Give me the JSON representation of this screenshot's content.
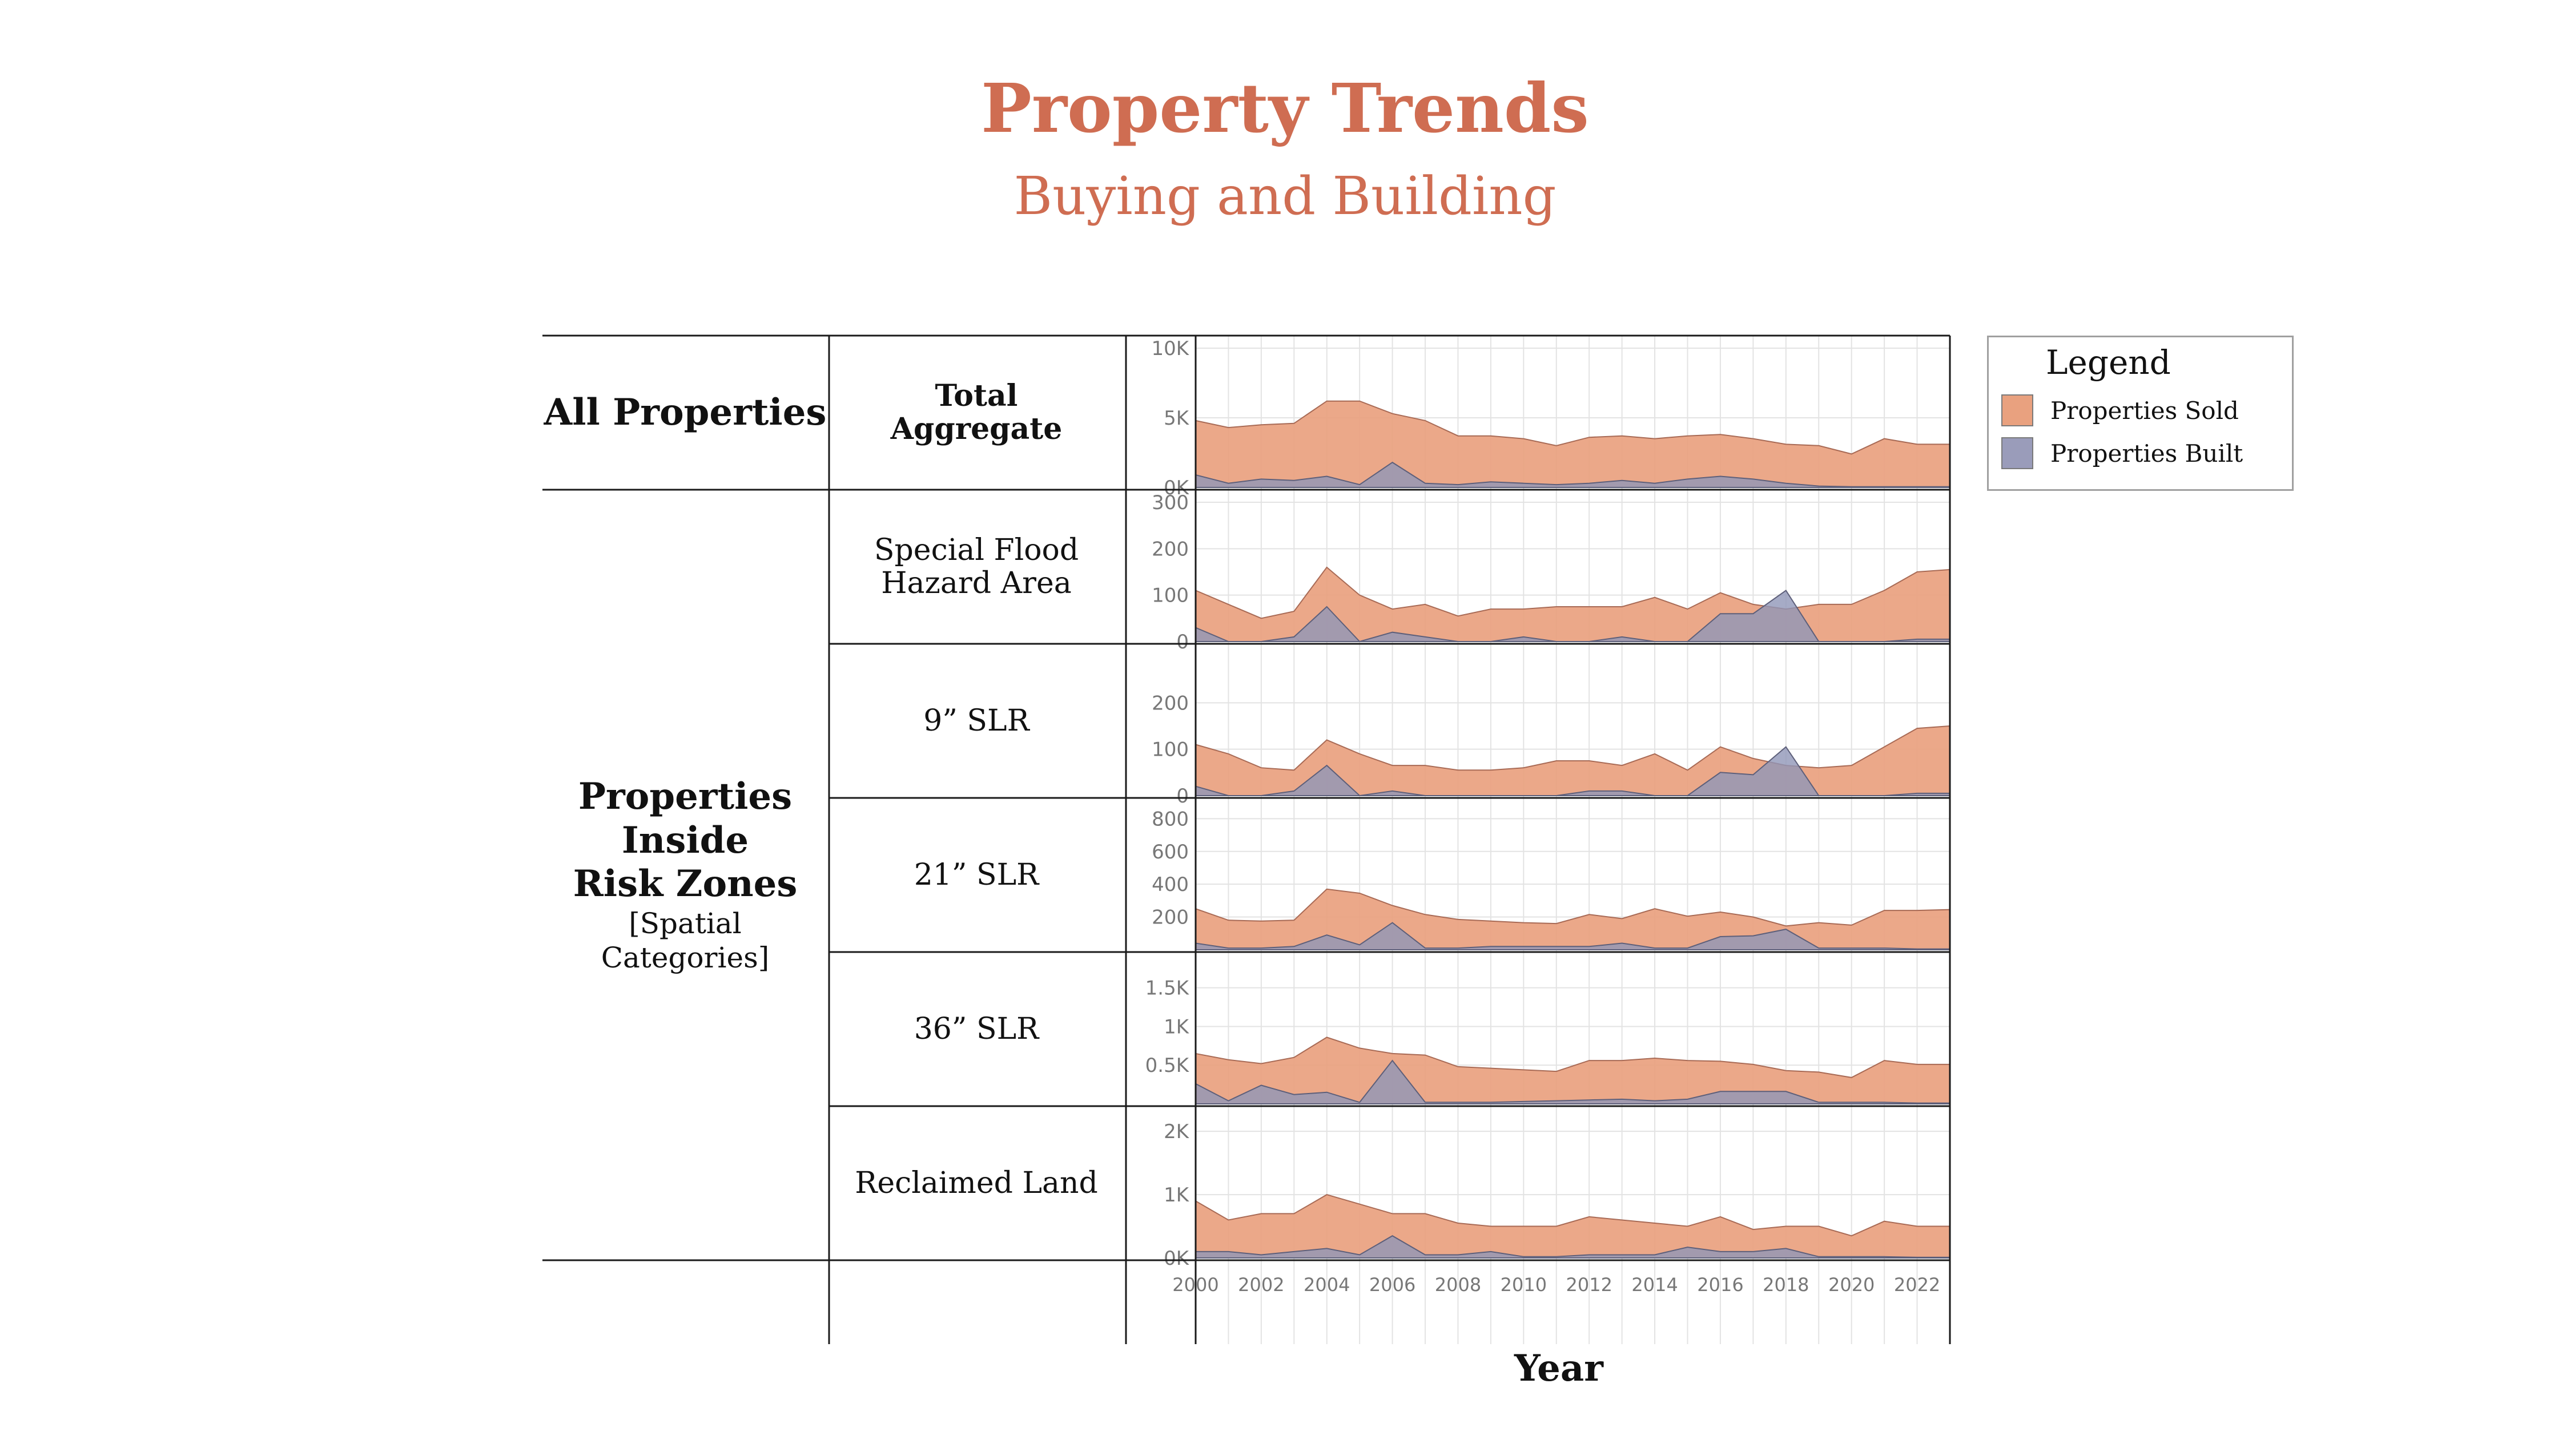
{
  "title": "Property Trends",
  "subtitle": "Buying and Building",
  "categories": {
    "all_main": "All Properties",
    "risk_main_lines": [
      "Properties",
      "Inside",
      "Risk Zones"
    ],
    "risk_sub": "[Spatial Categories]"
  },
  "legend": {
    "title": "Legend",
    "items": [
      {
        "label": "Properties Sold",
        "color": "#e9a17f"
      },
      {
        "label": "Properties Built",
        "color": "#9a9cba"
      }
    ]
  },
  "x_axis_title": "Year",
  "chart_data": {
    "type": "area",
    "x": [
      2000,
      2001,
      2002,
      2003,
      2004,
      2005,
      2006,
      2007,
      2008,
      2009,
      2010,
      2011,
      2012,
      2013,
      2014,
      2015,
      2016,
      2017,
      2018,
      2019,
      2020,
      2021,
      2022,
      2023
    ],
    "x_tick_labels": [
      "2000",
      "2002",
      "2004",
      "2006",
      "2008",
      "2010",
      "2012",
      "2014",
      "2016",
      "2018",
      "2020",
      "2022"
    ],
    "xlabel": "Year",
    "series_names": [
      "Properties Sold",
      "Properties Built"
    ],
    "panels": [
      {
        "label": "Total Aggregate",
        "bold": true,
        "ylim": [
          0,
          10000
        ],
        "y_ticks": [
          {
            "v": 0,
            "label": "0K"
          },
          {
            "v": 5000,
            "label": "5K"
          },
          {
            "v": 10000,
            "label": "10K"
          }
        ],
        "sold": [
          4800,
          4300,
          4500,
          4600,
          6200,
          6200,
          5300,
          4800,
          3700,
          3700,
          3500,
          3000,
          3600,
          3700,
          3500,
          3700,
          3800,
          3500,
          3100,
          3000,
          2400,
          3500,
          3100,
          3100
        ],
        "built": [
          900,
          300,
          600,
          500,
          800,
          200,
          1800,
          300,
          200,
          400,
          300,
          200,
          300,
          500,
          300,
          600,
          800,
          600,
          300,
          100,
          50,
          50,
          50,
          50
        ]
      },
      {
        "label": "Special Flood Hazard Area",
        "ylim": [
          0,
          300
        ],
        "y_ticks": [
          {
            "v": 0,
            "label": "0"
          },
          {
            "v": 100,
            "label": "100"
          },
          {
            "v": 200,
            "label": "200"
          },
          {
            "v": 300,
            "label": "300"
          }
        ],
        "sold": [
          110,
          80,
          50,
          65,
          160,
          100,
          70,
          80,
          55,
          70,
          70,
          75,
          75,
          75,
          95,
          70,
          105,
          80,
          70,
          80,
          80,
          110,
          150,
          155
        ],
        "built": [
          30,
          0,
          0,
          10,
          75,
          0,
          20,
          10,
          0,
          0,
          10,
          0,
          0,
          10,
          0,
          0,
          60,
          60,
          110,
          0,
          0,
          0,
          5,
          5
        ]
      },
      {
        "label": "9” SLR",
        "ylim": [
          0,
          300
        ],
        "y_ticks": [
          {
            "v": 0,
            "label": "0"
          },
          {
            "v": 100,
            "label": "100"
          },
          {
            "v": 200,
            "label": "200"
          }
        ],
        "sold": [
          110,
          90,
          60,
          55,
          120,
          90,
          65,
          65,
          55,
          55,
          60,
          75,
          75,
          65,
          90,
          55,
          105,
          80,
          65,
          60,
          65,
          105,
          145,
          150
        ],
        "built": [
          20,
          0,
          0,
          10,
          65,
          0,
          10,
          0,
          0,
          0,
          0,
          0,
          10,
          10,
          0,
          0,
          50,
          45,
          105,
          0,
          0,
          0,
          5,
          5
        ]
      },
      {
        "label": "21” SLR",
        "ylim": [
          0,
          850
        ],
        "y_ticks": [
          {
            "v": 200,
            "label": "200"
          },
          {
            "v": 400,
            "label": "400"
          },
          {
            "v": 600,
            "label": "600"
          },
          {
            "v": 800,
            "label": "800"
          }
        ],
        "sold": [
          250,
          180,
          175,
          180,
          370,
          345,
          270,
          215,
          185,
          175,
          165,
          160,
          215,
          190,
          250,
          205,
          230,
          200,
          145,
          165,
          150,
          240,
          240,
          245
        ],
        "built": [
          40,
          10,
          10,
          20,
          90,
          30,
          165,
          10,
          10,
          20,
          20,
          20,
          20,
          40,
          10,
          10,
          80,
          85,
          125,
          10,
          10,
          10,
          5,
          5
        ]
      },
      {
        "label": "36” SLR",
        "ylim": [
          0,
          1800
        ],
        "y_ticks": [
          {
            "v": 500,
            "label": "0.5K"
          },
          {
            "v": 1000,
            "label": "1K"
          },
          {
            "v": 1500,
            "label": "1.5K"
          }
        ],
        "sold": [
          650,
          570,
          520,
          600,
          860,
          720,
          650,
          630,
          480,
          460,
          440,
          420,
          560,
          560,
          590,
          560,
          550,
          510,
          430,
          410,
          340,
          560,
          510,
          510
        ],
        "built": [
          260,
          40,
          240,
          120,
          150,
          20,
          560,
          20,
          20,
          20,
          30,
          40,
          50,
          60,
          40,
          60,
          160,
          160,
          160,
          20,
          20,
          20,
          10,
          10
        ]
      },
      {
        "label": "Reclaimed Land",
        "ylim": [
          0,
          2200
        ],
        "y_ticks": [
          {
            "v": 0,
            "label": "0K"
          },
          {
            "v": 1000,
            "label": "1K"
          },
          {
            "v": 2000,
            "label": "2K"
          }
        ],
        "sold": [
          900,
          600,
          700,
          700,
          1000,
          850,
          700,
          700,
          550,
          500,
          500,
          500,
          650,
          600,
          550,
          500,
          650,
          450,
          500,
          500,
          350,
          580,
          500,
          500
        ],
        "built": [
          100,
          100,
          50,
          100,
          150,
          50,
          350,
          50,
          50,
          100,
          20,
          20,
          50,
          50,
          50,
          170,
          100,
          100,
          150,
          20,
          20,
          20,
          10,
          10
        ]
      }
    ]
  }
}
